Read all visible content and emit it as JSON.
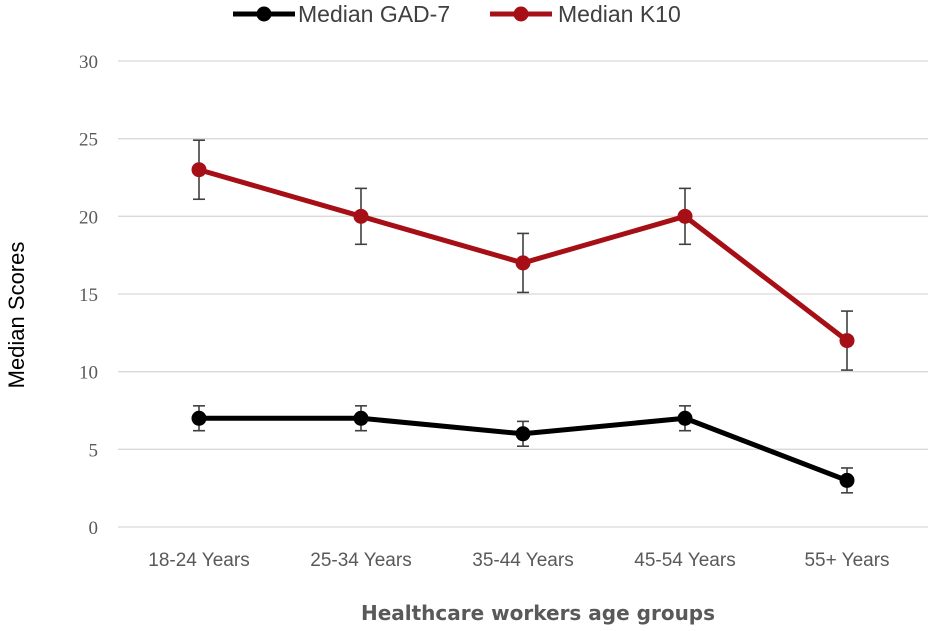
{
  "chart_data": {
    "type": "line",
    "title": "",
    "xlabel": "Healthcare workers age groups",
    "ylabel": "Median Scores",
    "categories": [
      "18-24 Years",
      "25-34 Years",
      "35-44 Years",
      "45-54 Years",
      "55+ Years"
    ],
    "ylim": [
      0,
      30
    ],
    "yticks": [
      0,
      5,
      10,
      15,
      20,
      25,
      30
    ],
    "grid": true,
    "legend_position": "top",
    "series": [
      {
        "name": "Median GAD-7",
        "color": "#000000",
        "values": [
          7,
          7,
          6,
          7,
          3
        ],
        "error_low": [
          6.2,
          6.2,
          5.2,
          6.2,
          2.2
        ],
        "error_high": [
          7.8,
          7.8,
          6.8,
          7.8,
          3.8
        ]
      },
      {
        "name": "Median K10",
        "color": "#a50f15",
        "values": [
          23,
          20,
          17,
          20,
          12
        ],
        "error_low": [
          21.1,
          18.2,
          15.1,
          18.2,
          10.1
        ],
        "error_high": [
          24.9,
          21.8,
          18.9,
          21.8,
          13.9
        ]
      }
    ]
  }
}
